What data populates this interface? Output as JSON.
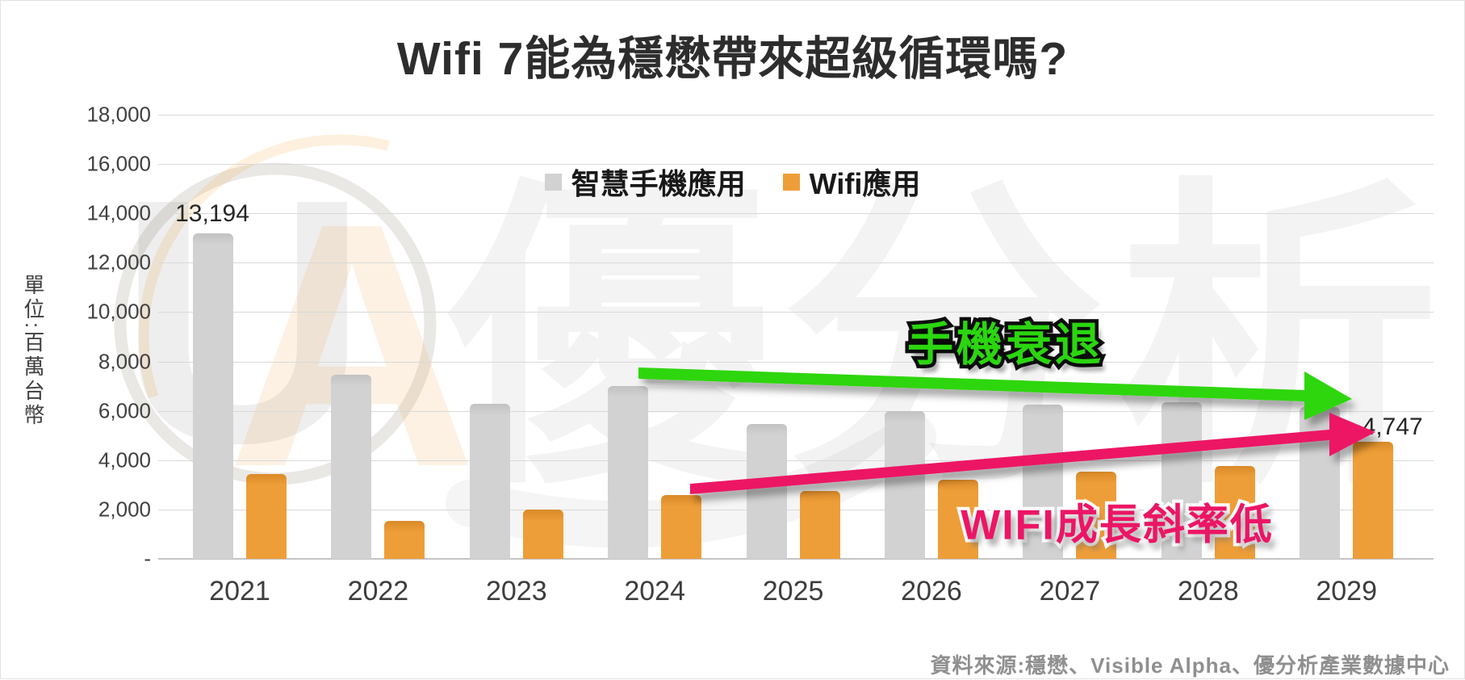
{
  "title": "Wifi 7能為穩懋帶來超級循環嗎?",
  "legend": [
    {
      "label": "智慧手機應用",
      "color": "#D2D2D2"
    },
    {
      "label": "Wifi應用",
      "color": "#EE9E38"
    }
  ],
  "y_axis": {
    "unit_label": "單位:百萬台幣",
    "tick_labels": [
      "-",
      "2,000",
      "4,000",
      "6,000",
      "8,000",
      "10,000",
      "12,000",
      "14,000",
      "16,000",
      "18,000"
    ]
  },
  "annotations": {
    "green_text": "手機衰退",
    "pink_text": "WIFI成長斜率低",
    "green_color": "#2fd60d",
    "pink_color": "#ec1565"
  },
  "data_labels": [
    {
      "series": 0,
      "index": 0,
      "text": "13,194"
    },
    {
      "series": 1,
      "index": 8,
      "text": "4,747"
    }
  ],
  "source": "資料來源:穩懋、Visible Alpha、優分析產業數據中心",
  "watermark": {
    "letter_u": "U",
    "letter_a": "A",
    "big_text": "優分析"
  },
  "chart_data": {
    "type": "bar",
    "title": "Wifi 7能為穩懋帶來超級循環嗎?",
    "categories": [
      "2021",
      "2022",
      "2023",
      "2024",
      "2025",
      "2026",
      "2027",
      "2028",
      "2029"
    ],
    "series": [
      {
        "name": "智慧手機應用",
        "color": "#D2D2D2",
        "color_dark": "#c2c2c2",
        "values": [
          13194,
          7450,
          6280,
          7000,
          5450,
          6000,
          6250,
          6350,
          6150
        ]
      },
      {
        "name": "Wifi應用",
        "color": "#EE9E38",
        "color_dark": "#d98a28",
        "values": [
          3450,
          1550,
          2000,
          2600,
          2750,
          3200,
          3530,
          3750,
          4747
        ]
      }
    ],
    "ylabel": "單位:百萬台幣",
    "ylim": [
      0,
      18000
    ],
    "ytick_step": 2000,
    "grid": true,
    "legend_position": "top-center"
  }
}
